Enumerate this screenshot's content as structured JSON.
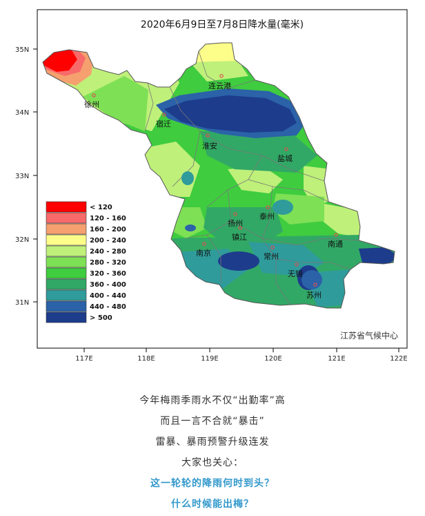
{
  "map": {
    "title": "2020年6月9日至7月8日降水量(毫米)",
    "source": "江苏省气候中心",
    "lat_labels": [
      "35N",
      "34N",
      "33N",
      "32N",
      "31N"
    ],
    "lon_labels": [
      "117E",
      "118E",
      "119E",
      "120E",
      "121E",
      "122E"
    ],
    "cities": [
      "连云港",
      "徐州",
      "宿迁",
      "淮安",
      "盐城",
      "扬州",
      "泰州",
      "镇江",
      "南京",
      "常州",
      "南通",
      "无锡",
      "苏州"
    ],
    "legend": [
      {
        "label": "< 120",
        "color": "#ff0000"
      },
      {
        "label": "120 - 160",
        "color": "#f86a6a"
      },
      {
        "label": "160 - 200",
        "color": "#f5a06e"
      },
      {
        "label": "200 - 240",
        "color": "#fdfd8a"
      },
      {
        "label": "240 - 280",
        "color": "#bff07a"
      },
      {
        "label": "280 - 320",
        "color": "#7ee055"
      },
      {
        "label": "320 - 360",
        "color": "#3fcc3f"
      },
      {
        "label": "360 - 400",
        "color": "#32a866"
      },
      {
        "label": "400 - 440",
        "color": "#2f9b9b"
      },
      {
        "label": "440 - 480",
        "color": "#2b62a8"
      },
      {
        "label": "> 500",
        "color": "#1d3c8c"
      }
    ]
  },
  "article": {
    "lines": [
      "今年梅雨季雨水不仅“出勤率”高",
      "而且一言不合就“暴击”",
      "雷暴、暴雨预警升级连发",
      "大家也关心："
    ],
    "highlight_lines": [
      "这一轮轮的降雨何时到头？",
      "什么时候能出梅？"
    ]
  }
}
